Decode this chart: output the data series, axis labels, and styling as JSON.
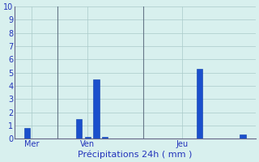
{
  "categories": [
    0,
    1,
    2,
    3,
    4,
    5,
    6,
    7,
    8,
    9,
    10,
    11,
    12,
    13,
    14,
    15,
    16,
    17,
    18,
    19,
    20,
    21,
    22,
    23,
    24,
    25,
    26,
    27
  ],
  "values": [
    0.0,
    0.8,
    0.0,
    0.0,
    0.0,
    0.0,
    0.0,
    1.5,
    0.15,
    4.5,
    0.15,
    0.0,
    0.0,
    0.0,
    0.0,
    0.0,
    0.0,
    0.0,
    0.0,
    0.0,
    0.0,
    5.3,
    0.0,
    0.0,
    0.0,
    0.0,
    0.3,
    0.0
  ],
  "bar_color": "#1a4fcc",
  "bar_edge_color": "#0a3aaa",
  "background_color": "#d8f0ee",
  "grid_color": "#aacaca",
  "axis_line_color": "#666688",
  "xlabel": "Précipitations 24h ( mm )",
  "xlabel_color": "#2233bb",
  "tick_label_color": "#2233bb",
  "ylim": [
    0,
    10
  ],
  "yticks": [
    0,
    1,
    2,
    3,
    4,
    5,
    6,
    7,
    8,
    9,
    10
  ],
  "day_labels": [
    {
      "label": "Mer",
      "x": 1.5
    },
    {
      "label": "Ven",
      "x": 8.0
    },
    {
      "label": "Jeu",
      "x": 19.0
    }
  ],
  "vline_positions": [
    4.5,
    14.5
  ],
  "vline_color": "#667788",
  "bar_width": 0.7,
  "xlim": [
    -0.5,
    27.5
  ]
}
